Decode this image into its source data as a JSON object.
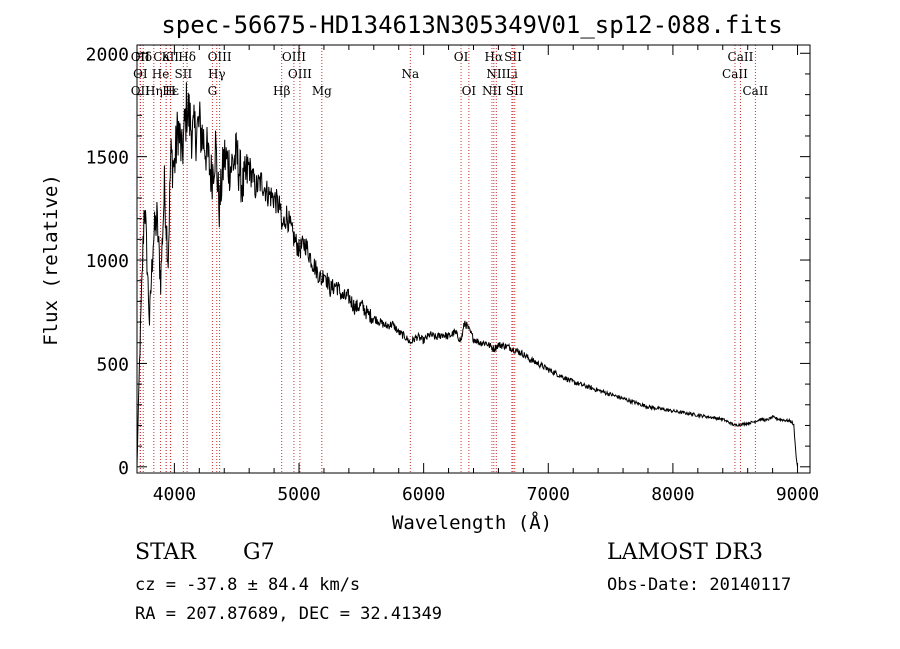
{
  "chart_data": {
    "type": "line",
    "title": "spec-56675-HD134613N305349V01_sp12-088.fits",
    "xlabel": "Wavelength (Å)",
    "ylabel": "Flux (relative)",
    "xlim": [
      3700,
      9100
    ],
    "ylim": [
      -30,
      2040
    ],
    "x_ticks": [
      4000,
      5000,
      6000,
      7000,
      8000,
      9000
    ],
    "y_ticks": [
      0,
      500,
      1000,
      1500,
      2000
    ],
    "series": [
      {
        "name": "spectrum",
        "x": [
          3700,
          3720,
          3740,
          3760,
          3780,
          3800,
          3830,
          3860,
          3890,
          3920,
          3950,
          3970,
          4000,
          4030,
          4060,
          4100,
          4150,
          4200,
          4250,
          4300,
          4330,
          4360,
          4400,
          4450,
          4500,
          4550,
          4600,
          4650,
          4700,
          4750,
          4800,
          4850,
          4861,
          4900,
          4950,
          5000,
          5050,
          5100,
          5150,
          5183,
          5200,
          5250,
          5300,
          5350,
          5400,
          5450,
          5500,
          5550,
          5600,
          5650,
          5700,
          5750,
          5800,
          5850,
          5893,
          5950,
          6000,
          6050,
          6100,
          6150,
          6200,
          6250,
          6300,
          6330,
          6400,
          6450,
          6500,
          6563,
          6600,
          6650,
          6700,
          6750,
          6800,
          6850,
          6900,
          7000,
          7100,
          7200,
          7300,
          7400,
          7500,
          7600,
          7700,
          7800,
          7900,
          8000,
          8100,
          8200,
          8300,
          8400,
          8498,
          8542,
          8600,
          8662,
          8700,
          8750,
          8800,
          8850,
          8900,
          8950,
          8970,
          8980,
          8990,
          9000
        ],
        "values": [
          0,
          500,
          900,
          1300,
          1000,
          700,
          1100,
          1200,
          900,
          1350,
          1000,
          1500,
          1450,
          1650,
          1500,
          1750,
          1600,
          1650,
          1550,
          1400,
          1550,
          1250,
          1500,
          1450,
          1500,
          1350,
          1450,
          1350,
          1380,
          1320,
          1300,
          1250,
          1150,
          1220,
          1120,
          1050,
          1080,
          1000,
          940,
          900,
          950,
          860,
          880,
          820,
          820,
          770,
          780,
          740,
          720,
          700,
          680,
          690,
          650,
          630,
          600,
          630,
          610,
          640,
          625,
          640,
          630,
          650,
          610,
          700,
          620,
          600,
          600,
          570,
          590,
          585,
          575,
          560,
          545,
          520,
          505,
          470,
          440,
          410,
          390,
          370,
          350,
          330,
          310,
          290,
          280,
          270,
          260,
          250,
          240,
          230,
          200,
          205,
          210,
          220,
          230,
          225,
          240,
          230,
          225,
          220,
          200,
          120,
          40,
          0
        ]
      }
    ],
    "lines": [
      {
        "label": "CaII",
        "x": 3934,
        "row": 1
      },
      {
        "label": "OII",
        "x": 3727,
        "row": 1
      },
      {
        "label": "Hε",
        "x": 3970,
        "row": 3
      },
      {
        "label": "Hδ",
        "x": 3750,
        "row": 1
      },
      {
        "label": "K",
        "x": 3934,
        "row": 1
      },
      {
        "label": "Hδ",
        "x": 4102,
        "row": 1
      },
      {
        "label": "OIII",
        "x": 4363,
        "row": 1
      },
      {
        "label": "OIII",
        "x": 4959,
        "row": 1
      },
      {
        "label": "OI",
        "x": 6300,
        "row": 1
      },
      {
        "label": "Hα",
        "x": 6563,
        "row": 1
      },
      {
        "label": "SII",
        "x": 6717,
        "row": 1
      },
      {
        "label": "CaII",
        "x": 8542,
        "row": 1
      },
      {
        "label": "OI",
        "x": 3727,
        "row": 2
      },
      {
        "label": "He",
        "x": 3889,
        "row": 2
      },
      {
        "label": "SII",
        "x": 4072,
        "row": 2
      },
      {
        "label": "Hγ",
        "x": 4340,
        "row": 2
      },
      {
        "label": "OIII",
        "x": 5007,
        "row": 2
      },
      {
        "label": "Na",
        "x": 5893,
        "row": 2
      },
      {
        "label": "NII",
        "x": 6583,
        "row": 2
      },
      {
        "label": "Li",
        "x": 6708,
        "row": 2
      },
      {
        "label": "CaII",
        "x": 8498,
        "row": 2
      },
      {
        "label": "OII",
        "x": 3727,
        "row": 3
      },
      {
        "label": "Hη",
        "x": 3835,
        "row": 3
      },
      {
        "label": "H",
        "x": 3968,
        "row": 3
      },
      {
        "label": "G",
        "x": 4305,
        "row": 3
      },
      {
        "label": "Hβ",
        "x": 4861,
        "row": 3
      },
      {
        "label": "Mg",
        "x": 5183,
        "row": 3
      },
      {
        "label": "OI",
        "x": 6363,
        "row": 3
      },
      {
        "label": "NII",
        "x": 6548,
        "row": 3
      },
      {
        "label": "SII",
        "x": 6731,
        "row": 3
      },
      {
        "label": "CaII",
        "x": 8662,
        "row": 3
      }
    ]
  },
  "info": {
    "object_class": "STAR",
    "subclass": "G7",
    "survey": "LAMOST DR3",
    "redshift_text": "cz = -37.8 ± 84.4 km/s",
    "obs_date_text": "Obs-Date: 20140117",
    "coords_text": "RA = 207.87689, DEC =  32.41349"
  },
  "colors": {
    "spectrum": "#000000",
    "line_markers": "#c83232",
    "axes": "#000000"
  }
}
